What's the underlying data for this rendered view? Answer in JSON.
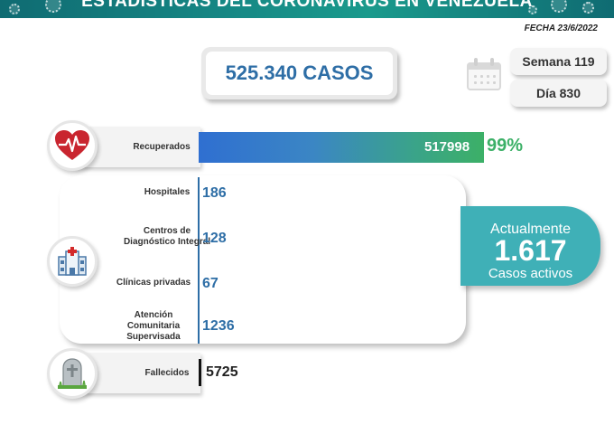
{
  "header": {
    "title": "ESTADÍSTICAS DEL CORONAVIRUS EN VENEZUELA",
    "date": "FECHA 23/6/2022"
  },
  "summary": {
    "total_cases": "525.340 CASOS",
    "week": "Semana 119",
    "day": "Día 830"
  },
  "recovered": {
    "label": "Recuperados",
    "value": "517998",
    "percent": "99%",
    "bar_fraction": 0.99
  },
  "health_centers": {
    "hospitals": {
      "label": "Hospitales",
      "value": "186"
    },
    "cdi": {
      "label_line1": "Centros de",
      "label_line2": "Diagnóstico Integral",
      "value": "128"
    },
    "clinics": {
      "label": "Clínicas privadas",
      "value": "67"
    },
    "community": {
      "label_line1": "Atención",
      "label_line2": "Comunitaria",
      "label_line3": "Supervisada",
      "value": "1236"
    }
  },
  "active": {
    "heading": "Actualmente",
    "value": "1.617",
    "footer": "Casos activos"
  },
  "deaths": {
    "label": "Fallecidos",
    "value": "5725"
  },
  "icons": [
    "heart-pulse-icon",
    "hospital-icon",
    "tombstone-icon",
    "calendar-icon"
  ],
  "colors": {
    "banner": "#178a86",
    "accent_blue": "#2e6ea6",
    "recovered_green": "#3cb067",
    "active_teal": "#3fb0b7"
  }
}
